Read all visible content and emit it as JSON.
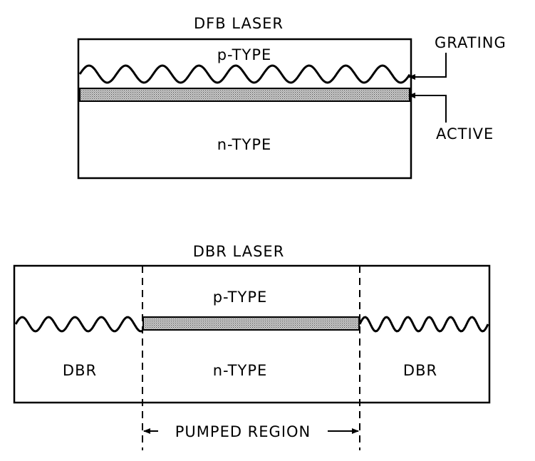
{
  "dfb": {
    "title": "DFB LASER",
    "top_layer": "p-TYPE",
    "bottom_layer": "n-TYPE",
    "callout_grating": "GRATING",
    "callout_active": "ACTIVE"
  },
  "dbr": {
    "title": "DBR LASER",
    "top_layer": "p-TYPE",
    "bottom_layer": "n-TYPE",
    "left_section": "DBR",
    "right_section": "DBR",
    "dimension_label": "PUMPED REGION"
  }
}
